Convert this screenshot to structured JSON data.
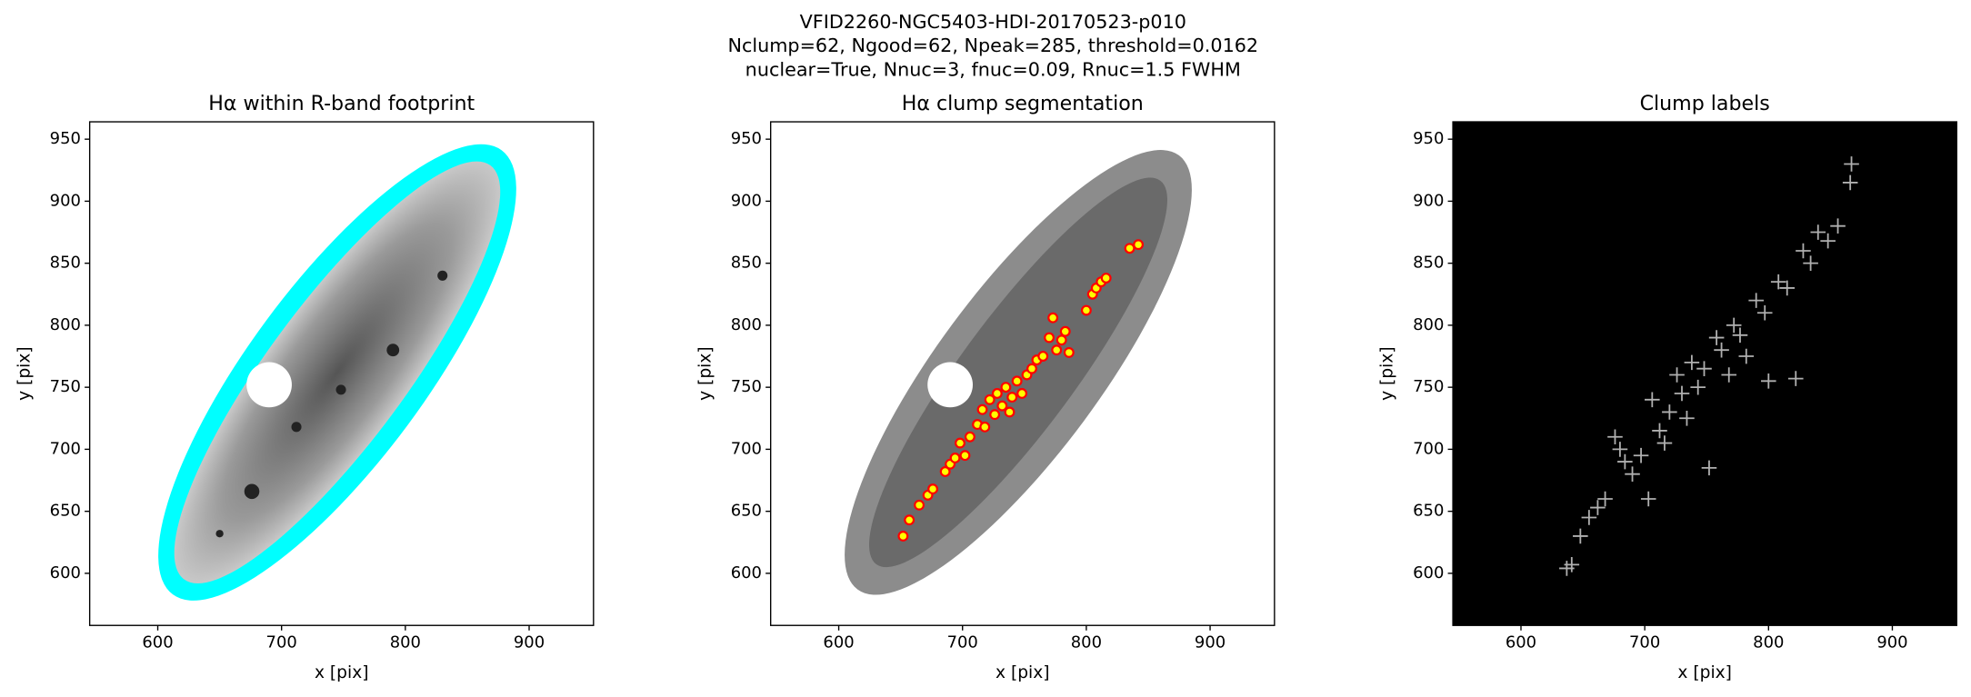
{
  "suptitle": [
    "VFID2260-NGC5403-HDI-20170523-p010",
    "Nclump=62, Ngood=62, Npeak=285, threshold=0.0162",
    "nuclear=True, Nnuc=3, fnuc=0.09, Rnuc=1.5 FWHM"
  ],
  "chart_data": [
    {
      "type": "image",
      "title": "Hα within R-band footprint",
      "xlabel": "x [pix]",
      "ylabel": "y [pix]",
      "xlim": [
        545,
        952
      ],
      "ylim": [
        558,
        964
      ],
      "xticks": [
        600,
        700,
        800,
        900
      ],
      "yticks": [
        600,
        650,
        700,
        750,
        800,
        850,
        900,
        950
      ]
    },
    {
      "type": "scatter",
      "title": "Hα clump segmentation",
      "xlabel": "x [pix]",
      "ylabel": "y [pix]",
      "xlim": [
        545,
        952
      ],
      "ylim": [
        558,
        964
      ],
      "xticks": [
        600,
        700,
        800,
        900
      ],
      "yticks": [
        600,
        650,
        700,
        750,
        800,
        850,
        900,
        950
      ],
      "series": [
        {
          "color": "#ff0000",
          "x": [
            652,
            657,
            665,
            672,
            676,
            686,
            690,
            694,
            698,
            702,
            706,
            712,
            716,
            718,
            722,
            726,
            728,
            732,
            735,
            738,
            740,
            744,
            748,
            752,
            756,
            760,
            765,
            770,
            773,
            776,
            780,
            783,
            786,
            800,
            805,
            808,
            812,
            816,
            835,
            842
          ],
          "y": [
            630,
            643,
            655,
            663,
            668,
            682,
            688,
            693,
            705,
            695,
            710,
            720,
            732,
            718,
            740,
            728,
            745,
            735,
            750,
            730,
            742,
            755,
            745,
            760,
            765,
            772,
            775,
            790,
            806,
            780,
            788,
            795,
            778,
            812,
            825,
            830,
            835,
            838,
            862,
            865
          ]
        }
      ]
    },
    {
      "type": "crosses",
      "title": "Clump labels",
      "xlabel": "x [pix]",
      "ylabel": "y [pix]",
      "xlim": [
        545,
        952
      ],
      "ylim": [
        558,
        964
      ],
      "xticks": [
        600,
        700,
        800,
        900
      ],
      "yticks": [
        600,
        650,
        700,
        750,
        800,
        850,
        900,
        950
      ],
      "series": [
        {
          "color": "#b0b0b0",
          "x": [
            637,
            641,
            648,
            655,
            662,
            668,
            676,
            680,
            684,
            690,
            697,
            703,
            706,
            712,
            716,
            720,
            726,
            730,
            734,
            738,
            743,
            748,
            752,
            758,
            762,
            768,
            772,
            777,
            782,
            790,
            797,
            800,
            808,
            815,
            822,
            828,
            834,
            840,
            848,
            856,
            866,
            867
          ],
          "y": [
            604,
            607,
            630,
            645,
            653,
            660,
            710,
            700,
            690,
            680,
            695,
            660,
            740,
            715,
            705,
            730,
            760,
            745,
            725,
            770,
            750,
            765,
            685,
            790,
            780,
            760,
            800,
            792,
            775,
            820,
            810,
            755,
            835,
            830,
            757,
            860,
            850,
            875,
            868,
            880,
            915,
            930
          ]
        }
      ]
    }
  ]
}
